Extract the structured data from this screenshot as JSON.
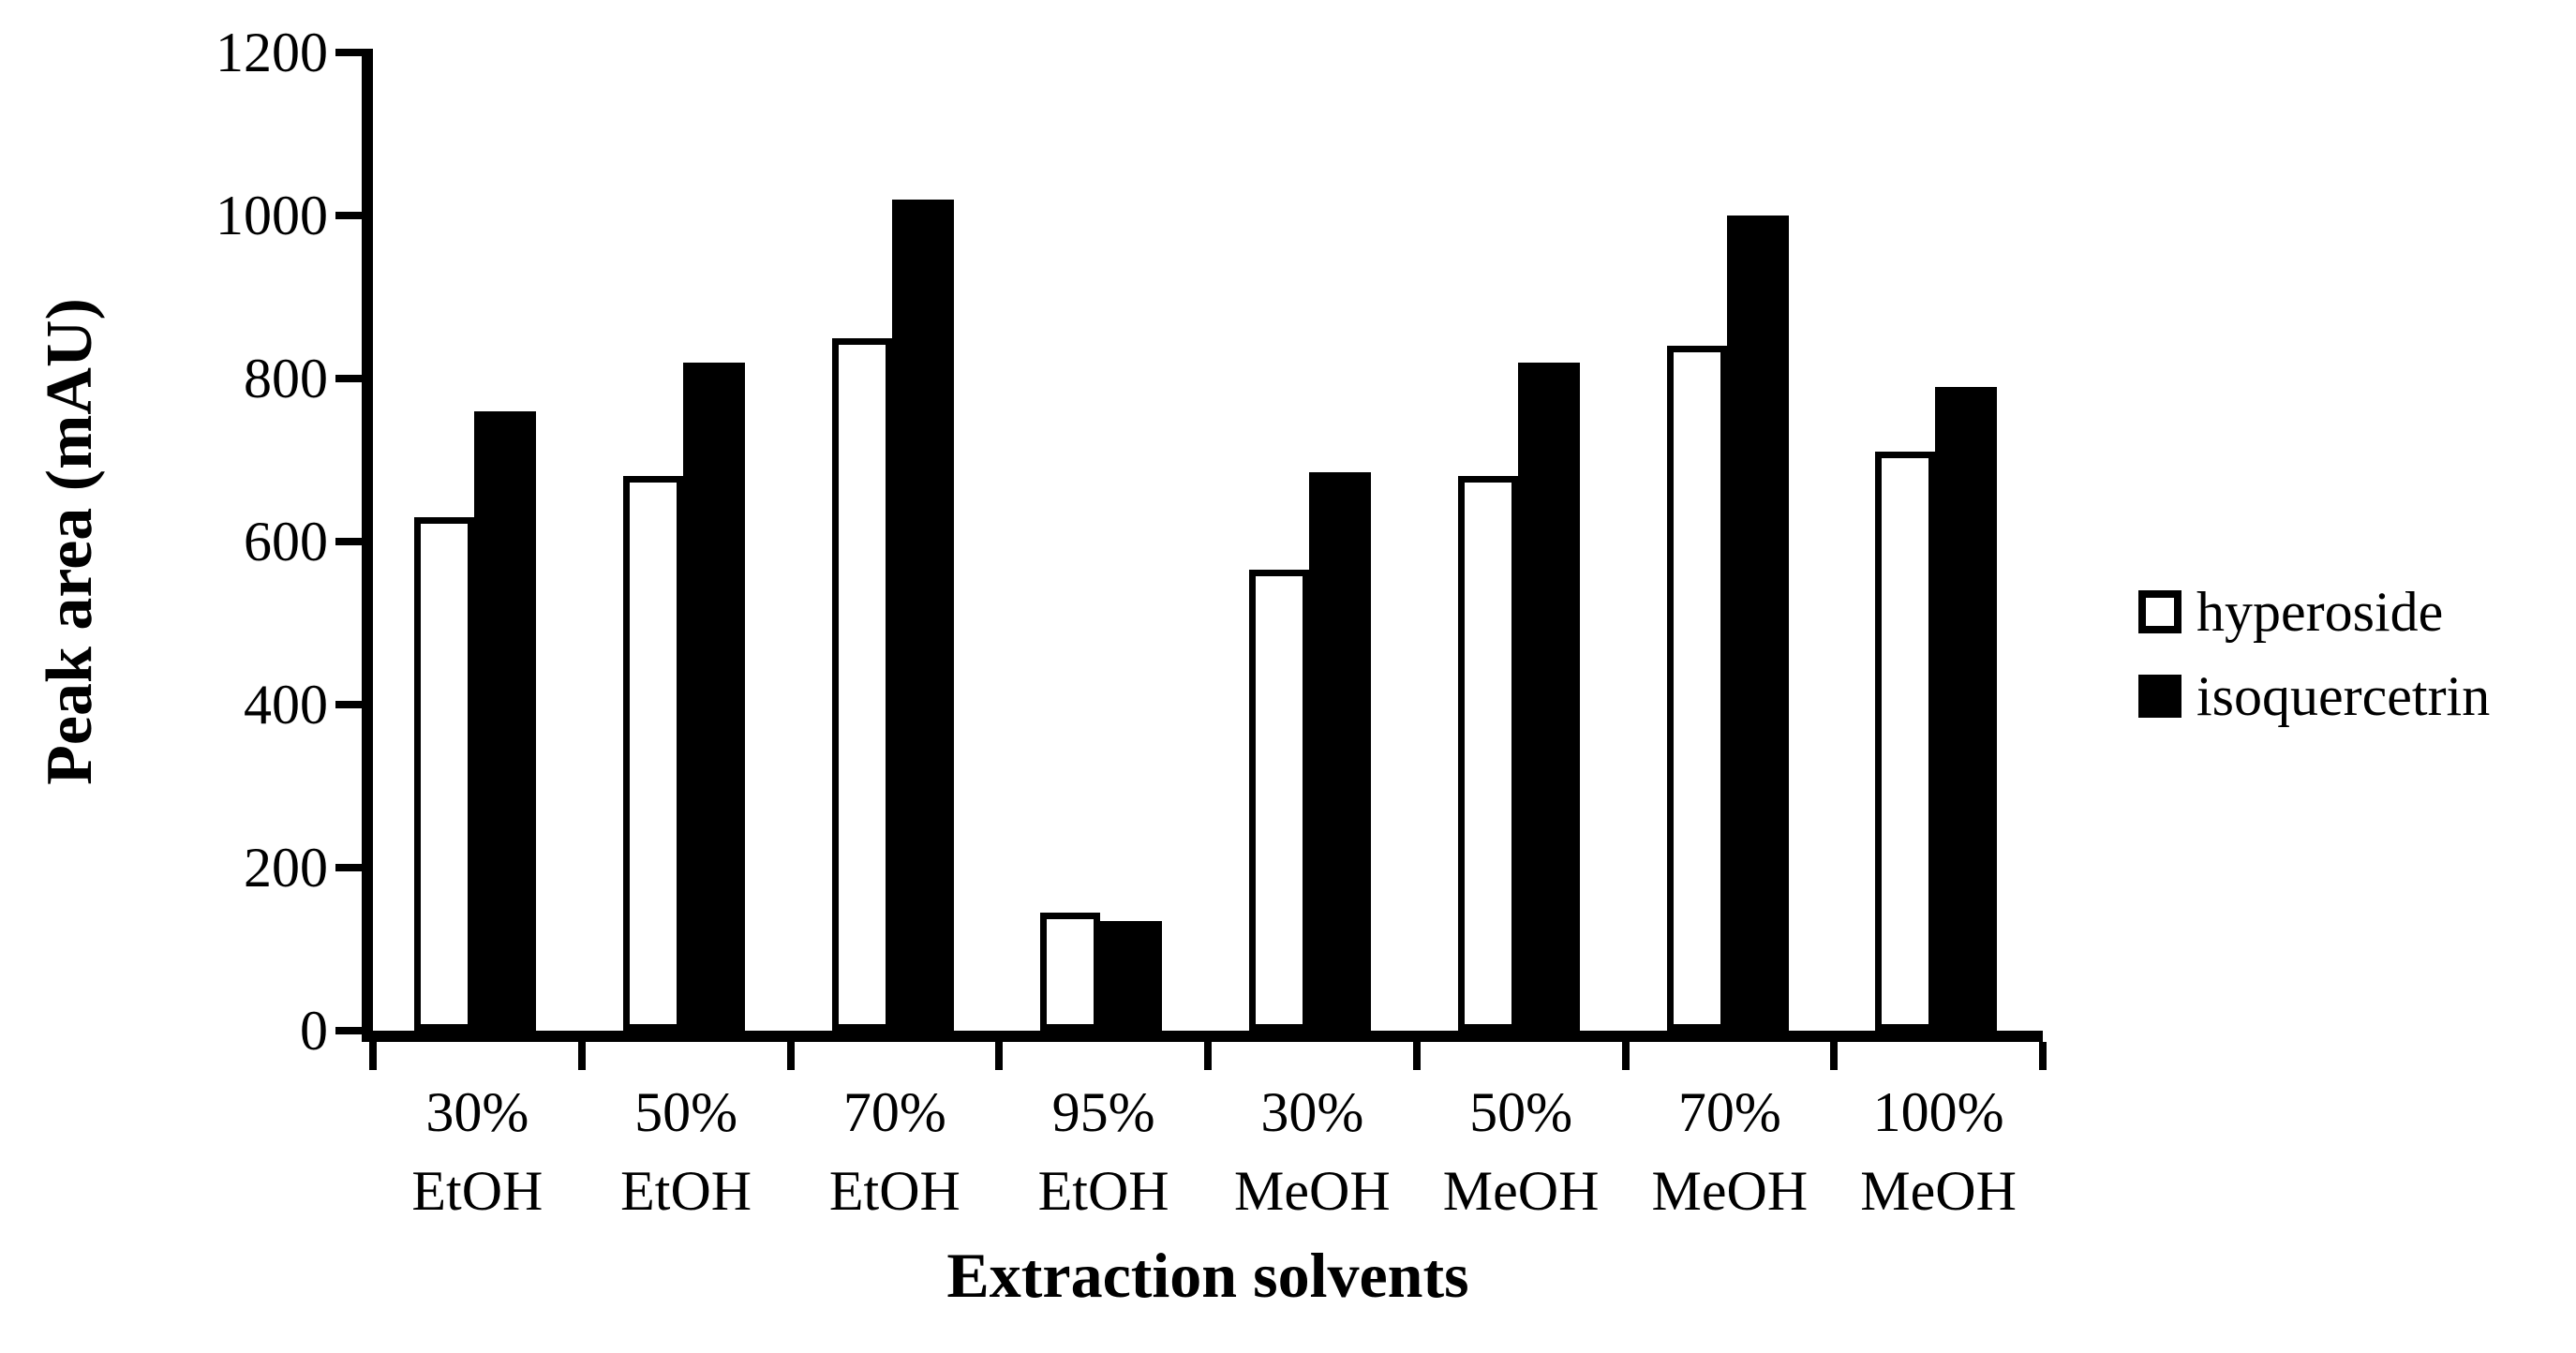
{
  "figure": {
    "ylabel": "Peak area (mAU)",
    "xlabel": "Extraction solvents"
  },
  "legend": [
    {
      "label": "hyperoside",
      "swatch": "white-outlined-square",
      "color": "#ffffff"
    },
    {
      "label": "isoquercetrin",
      "swatch": "black-filled-square",
      "color": "#000000"
    }
  ],
  "chart_data": {
    "type": "bar",
    "title": "",
    "xlabel": "Extraction solvents",
    "ylabel": "Peak area (mAU)",
    "categories": [
      "30% EtOH",
      "50% EtOH",
      "70% EtOH",
      "95% EtOH",
      "30% MeOH",
      "50% MeOH",
      "70% MeOH",
      "100% MeOH"
    ],
    "series": [
      {
        "name": "hyperoside",
        "fill": "#ffffff",
        "border": "#000000",
        "values": [
          630,
          680,
          850,
          145,
          565,
          680,
          840,
          710
        ]
      },
      {
        "name": "isoquercetrin",
        "fill": "#000000",
        "border": "#000000",
        "values": [
          760,
          820,
          1020,
          135,
          685,
          820,
          1000,
          790
        ]
      }
    ],
    "ylim": [
      0,
      1200
    ],
    "yticks": [
      0,
      200,
      400,
      600,
      800,
      1000,
      1200
    ],
    "grid": false,
    "legend_position": "right-middle"
  }
}
